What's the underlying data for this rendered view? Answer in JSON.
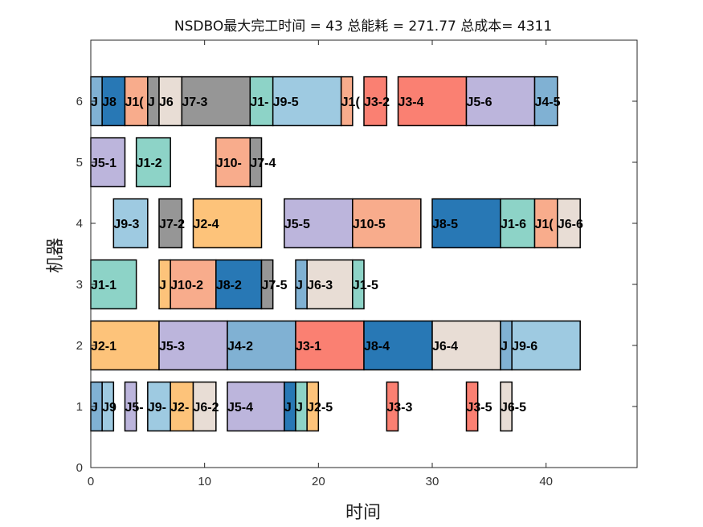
{
  "chart_data": {
    "type": "gantt",
    "title": "NSDBO最大完工时间 = 43 总能耗 = 271.77 总成本= 4311",
    "xlabel": "时间",
    "ylabel": "机器",
    "xlim": [
      0,
      48
    ],
    "ylim": [
      0,
      7
    ],
    "xticks": [
      0,
      10,
      20,
      30,
      40
    ],
    "yticks": [
      0,
      1,
      2,
      3,
      4,
      5,
      6
    ],
    "job_colors": {
      "J1": "#8dd3c7",
      "J2": "#fdc37a",
      "J3": "#fa8072",
      "J4": "#80b1d3",
      "J5": "#bcb5dc",
      "J6": "#e8ddd5",
      "J7": "#969696",
      "J8": "#2878b5",
      "J9": "#9ecae1",
      "J10": "#f8ac8c"
    },
    "operations": [
      {
        "machine": 6,
        "job": "J4",
        "start": 0,
        "end": 1,
        "label": "J"
      },
      {
        "machine": 6,
        "job": "J8",
        "start": 1,
        "end": 3,
        "label": "J8"
      },
      {
        "machine": 6,
        "job": "J10",
        "start": 3,
        "end": 5,
        "label": "J1("
      },
      {
        "machine": 6,
        "job": "J7",
        "start": 5,
        "end": 6,
        "label": "J"
      },
      {
        "machine": 6,
        "job": "J6",
        "start": 6,
        "end": 8,
        "label": "J6"
      },
      {
        "machine": 6,
        "job": "J7",
        "start": 8,
        "end": 14,
        "label": "J7-3"
      },
      {
        "machine": 6,
        "job": "J1",
        "start": 14,
        "end": 16,
        "label": "J1-"
      },
      {
        "machine": 6,
        "job": "J9",
        "start": 16,
        "end": 22,
        "label": "J9-5"
      },
      {
        "machine": 6,
        "job": "J10",
        "start": 22,
        "end": 23,
        "label": "J1("
      },
      {
        "machine": 6,
        "job": "J3",
        "start": 24,
        "end": 26,
        "label": "J3-2"
      },
      {
        "machine": 6,
        "job": "J3",
        "start": 27,
        "end": 33,
        "label": "J3-4"
      },
      {
        "machine": 6,
        "job": "J5",
        "start": 33,
        "end": 39,
        "label": "J5-6"
      },
      {
        "machine": 6,
        "job": "J4",
        "start": 39,
        "end": 41,
        "label": "J4-5"
      },
      {
        "machine": 5,
        "job": "J5",
        "start": 0,
        "end": 3,
        "label": "J5-1"
      },
      {
        "machine": 5,
        "job": "J1",
        "start": 4,
        "end": 7,
        "label": "J1-2"
      },
      {
        "machine": 5,
        "job": "J10",
        "start": 11,
        "end": 14,
        "label": "J10-"
      },
      {
        "machine": 5,
        "job": "J7",
        "start": 14,
        "end": 15,
        "label": "J7-4"
      },
      {
        "machine": 4,
        "job": "J9",
        "start": 2,
        "end": 5,
        "label": "J9-3"
      },
      {
        "machine": 4,
        "job": "J7",
        "start": 6,
        "end": 8,
        "label": "J7-2"
      },
      {
        "machine": 4,
        "job": "J2",
        "start": 9,
        "end": 15,
        "label": "J2-4"
      },
      {
        "machine": 4,
        "job": "J5",
        "start": 17,
        "end": 23,
        "label": "J5-5"
      },
      {
        "machine": 4,
        "job": "J10",
        "start": 23,
        "end": 29,
        "label": "J10-5"
      },
      {
        "machine": 4,
        "job": "J8",
        "start": 30,
        "end": 36,
        "label": "J8-5"
      },
      {
        "machine": 4,
        "job": "J1",
        "start": 36,
        "end": 39,
        "label": "J1-6"
      },
      {
        "machine": 4,
        "job": "J10",
        "start": 39,
        "end": 41,
        "label": "J1("
      },
      {
        "machine": 4,
        "job": "J6",
        "start": 41,
        "end": 43,
        "label": "J6-6"
      },
      {
        "machine": 3,
        "job": "J1",
        "start": 0,
        "end": 4,
        "label": "J1-1"
      },
      {
        "machine": 3,
        "job": "J2",
        "start": 6,
        "end": 7,
        "label": "J"
      },
      {
        "machine": 3,
        "job": "J10",
        "start": 7,
        "end": 11,
        "label": "J10-2"
      },
      {
        "machine": 3,
        "job": "J8",
        "start": 11,
        "end": 15,
        "label": "J8-2"
      },
      {
        "machine": 3,
        "job": "J7",
        "start": 15,
        "end": 16,
        "label": "J7-5"
      },
      {
        "machine": 3,
        "job": "J4",
        "start": 18,
        "end": 19,
        "label": "J"
      },
      {
        "machine": 3,
        "job": "J6",
        "start": 19,
        "end": 23,
        "label": "J6-3"
      },
      {
        "machine": 3,
        "job": "J1",
        "start": 23,
        "end": 24,
        "label": "J1-5"
      },
      {
        "machine": 2,
        "job": "J2",
        "start": 0,
        "end": 6,
        "label": "J2-1"
      },
      {
        "machine": 2,
        "job": "J5",
        "start": 6,
        "end": 12,
        "label": "J5-3"
      },
      {
        "machine": 2,
        "job": "J4",
        "start": 12,
        "end": 18,
        "label": "J4-2"
      },
      {
        "machine": 2,
        "job": "J3",
        "start": 18,
        "end": 24,
        "label": "J3-1"
      },
      {
        "machine": 2,
        "job": "J8",
        "start": 24,
        "end": 30,
        "label": "J8-4"
      },
      {
        "machine": 2,
        "job": "J6",
        "start": 30,
        "end": 36,
        "label": "J6-4"
      },
      {
        "machine": 2,
        "job": "J4",
        "start": 36,
        "end": 37,
        "label": "J"
      },
      {
        "machine": 2,
        "job": "J9",
        "start": 37,
        "end": 43,
        "label": "J9-6"
      },
      {
        "machine": 1,
        "job": "J4",
        "start": 0,
        "end": 1,
        "label": "J"
      },
      {
        "machine": 1,
        "job": "J9",
        "start": 1,
        "end": 2,
        "label": "J9"
      },
      {
        "machine": 1,
        "job": "J5",
        "start": 3,
        "end": 4,
        "label": "J5-"
      },
      {
        "machine": 1,
        "job": "J9",
        "start": 5,
        "end": 7,
        "label": "J9-"
      },
      {
        "machine": 1,
        "job": "J2",
        "start": 7,
        "end": 9,
        "label": "J2-"
      },
      {
        "machine": 1,
        "job": "J6",
        "start": 9,
        "end": 11,
        "label": "J6-2"
      },
      {
        "machine": 1,
        "job": "J5",
        "start": 12,
        "end": 17,
        "label": "J5-4"
      },
      {
        "machine": 1,
        "job": "J8",
        "start": 17,
        "end": 18,
        "label": "J"
      },
      {
        "machine": 1,
        "job": "J1",
        "start": 18,
        "end": 19,
        "label": "J"
      },
      {
        "machine": 1,
        "job": "J2",
        "start": 19,
        "end": 20,
        "label": "J2-5"
      },
      {
        "machine": 1,
        "job": "J3",
        "start": 26,
        "end": 27,
        "label": "J3-3"
      },
      {
        "machine": 1,
        "job": "J3",
        "start": 33,
        "end": 34,
        "label": "J3-5"
      },
      {
        "machine": 1,
        "job": "J6",
        "start": 36,
        "end": 37,
        "label": "J6-5"
      }
    ]
  }
}
